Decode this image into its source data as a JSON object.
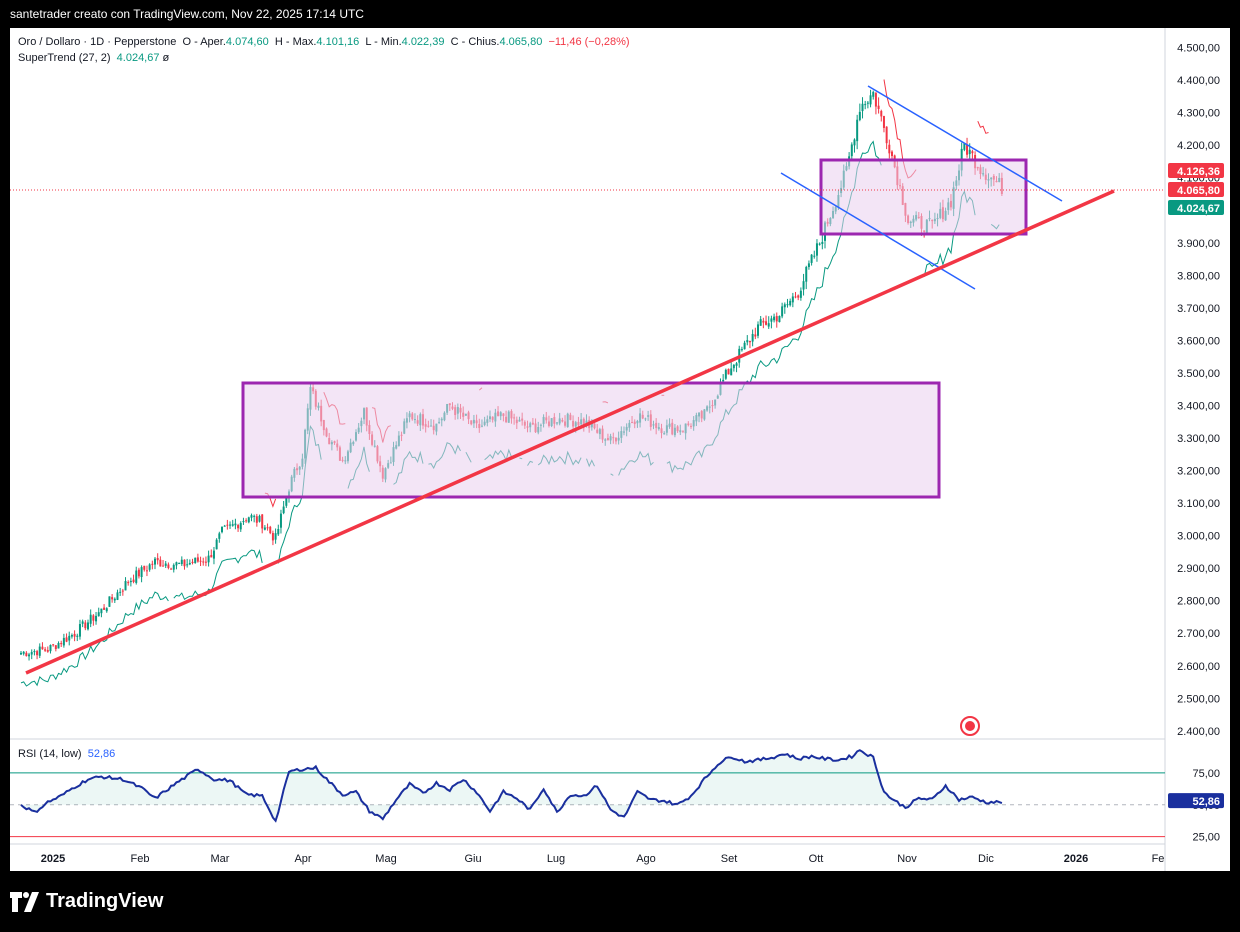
{
  "caption": "santetrader creato con TradingView.com, Nov 22, 2025 17:14 UTC",
  "brand": "TradingView",
  "legend": {
    "line1_prefix": "Oro / Dollaro · 1D · Pepperstone",
    "o_label": "O - Aper.",
    "o_val": "4.074,60",
    "h_label": "H - Max.",
    "h_val": "4.101,16",
    "l_label": "L - Min.",
    "l_val": "4.022,39",
    "c_label": "C - Chius.",
    "c_val": "4.065,80",
    "change": "−11,46 (−0,28%)",
    "supertrend_label": "SuperTrend (27, 2)",
    "supertrend_val": "4.024,67",
    "rsi_label": "RSI (14, low)",
    "rsi_val": "52,86"
  },
  "colors": {
    "up": "#089981",
    "down": "#f23645",
    "box": "#9c27b0",
    "box_fill": "#e9d0ef",
    "trend": "#f23645",
    "channel": "#2962ff"
  },
  "chart_data": [
    {
      "type": "candlestick",
      "title": "Oro / Dollaro · 1D · Pepperstone",
      "ylim": [
        2375,
        4560
      ],
      "y_ticks": [
        "4.500,00",
        "4.400,00",
        "4.300,00",
        "4.200,00",
        "4.100,00",
        "4.000,00",
        "3.900,00",
        "3.800,00",
        "3.700,00",
        "3.600,00",
        "3.500,00",
        "3.400,00",
        "3.300,00",
        "3.200,00",
        "3.100,00",
        "3.000,00",
        "2.900,00",
        "2.800,00",
        "2.700,00",
        "2.600,00",
        "2.500,00",
        "2.400,00"
      ],
      "x_ticks": [
        "2025",
        "Feb",
        "Mar",
        "Apr",
        "Mag",
        "Giu",
        "Lug",
        "Ago",
        "Set",
        "Ott",
        "Nov",
        "Dic",
        "2026",
        "Fe"
      ],
      "price_labels": [
        {
          "text": "4.126,36",
          "color": "#f23645",
          "value": 4126.36
        },
        {
          "text": "4.065,80",
          "color": "#f23645",
          "value": 4065.8
        },
        {
          "text": "4.024,67",
          "color": "#089981",
          "value": 4024.67
        }
      ],
      "anchors": [
        [
          0,
          2640
        ],
        [
          10,
          2650
        ],
        [
          20,
          2700
        ],
        [
          30,
          2770
        ],
        [
          40,
          2860
        ],
        [
          50,
          2920
        ],
        [
          60,
          2910
        ],
        [
          70,
          2930
        ],
        [
          75,
          3010
        ],
        [
          85,
          3060
        ],
        [
          90,
          3040
        ],
        [
          95,
          2990
        ],
        [
          100,
          3150
        ],
        [
          105,
          3250
        ],
        [
          108,
          3450
        ],
        [
          115,
          3300
        ],
        [
          120,
          3230
        ],
        [
          128,
          3380
        ],
        [
          135,
          3190
        ],
        [
          145,
          3370
        ],
        [
          155,
          3340
        ],
        [
          160,
          3400
        ],
        [
          170,
          3330
        ],
        [
          180,
          3370
        ],
        [
          190,
          3330
        ],
        [
          200,
          3360
        ],
        [
          210,
          3350
        ],
        [
          220,
          3290
        ],
        [
          230,
          3370
        ],
        [
          240,
          3330
        ],
        [
          247,
          3330
        ],
        [
          255,
          3370
        ],
        [
          265,
          3520
        ],
        [
          275,
          3640
        ],
        [
          283,
          3680
        ],
        [
          290,
          3750
        ],
        [
          298,
          3900
        ],
        [
          308,
          4120
        ],
        [
          313,
          4320
        ],
        [
          318,
          4360
        ],
        [
          324,
          4200
        ],
        [
          331,
          3970
        ],
        [
          340,
          3950
        ],
        [
          347,
          4030
        ],
        [
          352,
          4200
        ],
        [
          358,
          4130
        ],
        [
          366,
          4070
        ]
      ],
      "rsi": {
        "title": "RSI (14, low)",
        "levels": [
          75,
          50,
          25
        ],
        "ylim": [
          20,
          100
        ],
        "values_anchors": [
          [
            0,
            50
          ],
          [
            5,
            44
          ],
          [
            10,
            52
          ],
          [
            15,
            57
          ],
          [
            20,
            64
          ],
          [
            25,
            70
          ],
          [
            30,
            72
          ],
          [
            38,
            70
          ],
          [
            45,
            63
          ],
          [
            50,
            55
          ],
          [
            58,
            67
          ],
          [
            66,
            78
          ],
          [
            72,
            70
          ],
          [
            78,
            69
          ],
          [
            84,
            58
          ],
          [
            90,
            57
          ],
          [
            95,
            37
          ],
          [
            100,
            76
          ],
          [
            105,
            78
          ],
          [
            110,
            79
          ],
          [
            115,
            68
          ],
          [
            120,
            58
          ],
          [
            125,
            60
          ],
          [
            130,
            45
          ],
          [
            135,
            39
          ],
          [
            140,
            54
          ],
          [
            145,
            66
          ],
          [
            150,
            59
          ],
          [
            155,
            67
          ],
          [
            160,
            62
          ],
          [
            165,
            70
          ],
          [
            170,
            60
          ],
          [
            175,
            45
          ],
          [
            180,
            60
          ],
          [
            185,
            55
          ],
          [
            190,
            46
          ],
          [
            195,
            63
          ],
          [
            200,
            44
          ],
          [
            205,
            58
          ],
          [
            210,
            57
          ],
          [
            215,
            65
          ],
          [
            220,
            46
          ],
          [
            225,
            40
          ],
          [
            230,
            60
          ],
          [
            235,
            54
          ],
          [
            240,
            53
          ],
          [
            245,
            50
          ],
          [
            250,
            57
          ],
          [
            255,
            70
          ],
          [
            260,
            82
          ],
          [
            265,
            88
          ],
          [
            270,
            84
          ],
          [
            275,
            85
          ],
          [
            280,
            87
          ],
          [
            285,
            90
          ],
          [
            290,
            86
          ],
          [
            295,
            88
          ],
          [
            300,
            86
          ],
          [
            305,
            85
          ],
          [
            310,
            88
          ],
          [
            313,
            93
          ],
          [
            318,
            87
          ],
          [
            322,
            60
          ],
          [
            326,
            53
          ],
          [
            330,
            48
          ],
          [
            335,
            55
          ],
          [
            340,
            54
          ],
          [
            345,
            65
          ],
          [
            350,
            54
          ],
          [
            355,
            56
          ],
          [
            360,
            52
          ]
        ]
      }
    }
  ]
}
